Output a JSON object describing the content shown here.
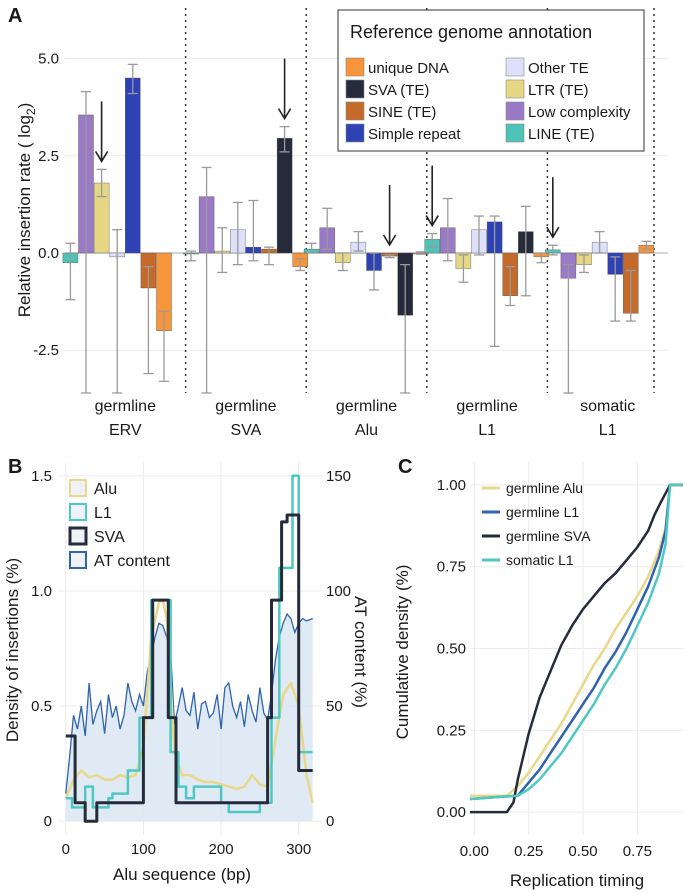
{
  "colors": {
    "grid": "#eaeaea",
    "errbar": "#9a9a9a",
    "arrow": "#222222",
    "at_fill": "#dbe6f2",
    "at_line": "#2e63ad"
  },
  "chart_data": [
    {
      "panel": "A",
      "type": "bar",
      "ylabel": "Relative insertion rate ( log",
      "ylabel_sub": "2",
      "ylabel_end": ")",
      "ylim": [
        -3.6,
        6.3
      ],
      "yticks": [
        -2.5,
        0.0,
        2.5,
        5.0
      ],
      "ytick_labels": [
        "-2.5",
        "0.0",
        "2.5",
        "5.0"
      ],
      "categories": [
        "unique DNA",
        "SVA (TE)",
        "SINE (TE)",
        "Simple repeat",
        "Other TE",
        "LTR (TE)",
        "Low complexity",
        "LINE (TE)"
      ],
      "category_colors": [
        "#f7953b",
        "#262b3b",
        "#c46a2a",
        "#2e42b4",
        "#dde0f8",
        "#e6d785",
        "#9a7ac6",
        "#4ec3b7"
      ],
      "bar_order": [
        "LINE (TE)",
        "Low complexity",
        "LTR (TE)",
        "Other TE",
        "Simple repeat",
        "SINE (TE)",
        "unique DNA"
      ],
      "groups": [
        {
          "label": [
            "germline",
            "ERV"
          ],
          "series": [
            "LINE (TE)",
            "Low complexity",
            "LTR (TE)",
            "Other TE",
            "Simple repeat",
            "SINE (TE)",
            "unique DNA"
          ],
          "values": [
            -0.25,
            3.55,
            1.8,
            -0.1,
            4.5,
            -0.9,
            -2.0
          ],
          "lo": [
            -1.2,
            -3.6,
            1.45,
            -3.6,
            4.1,
            -3.1,
            -3.3
          ],
          "hi": [
            0.25,
            4.15,
            2.15,
            0.6,
            4.85,
            -0.35,
            -1.5
          ]
        },
        {
          "label": [
            "germline",
            "SVA"
          ],
          "series": [
            "LINE (TE)",
            "Low complexity",
            "LTR (TE)",
            "Other TE",
            "Simple repeat",
            "SINE (TE)",
            "SVA (TE)",
            "unique DNA"
          ],
          "values": [
            0.0,
            1.45,
            0.05,
            0.6,
            0.15,
            0.1,
            2.95,
            -0.35
          ],
          "lo": [
            -0.2,
            -3.6,
            -0.5,
            -0.3,
            -0.2,
            -0.3,
            2.6,
            -0.45
          ],
          "hi": [
            0.05,
            2.2,
            0.65,
            1.3,
            1.35,
            0.15,
            3.25,
            -0.15
          ]
        },
        {
          "label": [
            "germline",
            "Alu"
          ],
          "series": [
            "LINE (TE)",
            "Low complexity",
            "LTR (TE)",
            "Other TE",
            "Simple repeat",
            "SINE (TE)",
            "SVA (TE)",
            "unique DNA"
          ],
          "values": [
            0.1,
            0.65,
            -0.25,
            0.28,
            -0.45,
            -0.08,
            -1.6,
            0.0
          ],
          "lo": [
            0.0,
            0.1,
            -0.45,
            0.05,
            -0.95,
            -0.12,
            -3.6,
            -0.03
          ],
          "hi": [
            0.25,
            1.15,
            0.0,
            0.55,
            0.0,
            -0.05,
            -0.3,
            0.03
          ]
        },
        {
          "label": [
            "germline",
            "L1"
          ],
          "series": [
            "LINE (TE)",
            "Low complexity",
            "LTR (TE)",
            "Other TE",
            "Simple repeat",
            "SINE (TE)",
            "SVA (TE)",
            "unique DNA"
          ],
          "values": [
            0.35,
            0.65,
            -0.4,
            0.6,
            0.8,
            -1.1,
            0.55,
            -0.1
          ],
          "lo": [
            0.15,
            -0.2,
            -0.75,
            -0.05,
            -2.4,
            -1.35,
            -1.1,
            -0.25
          ],
          "hi": [
            0.5,
            1.4,
            -0.05,
            0.95,
            0.95,
            -0.35,
            1.2,
            0.0
          ]
        },
        {
          "label": [
            "somatic",
            "L1"
          ],
          "series": [
            "LINE (TE)",
            "Low complexity",
            "LTR (TE)",
            "Other TE",
            "Simple repeat",
            "SINE (TE)",
            "unique DNA"
          ],
          "values": [
            0.08,
            -0.65,
            -0.3,
            0.28,
            -0.55,
            -1.55,
            0.2
          ],
          "lo": [
            -0.05,
            -3.6,
            -0.5,
            0.0,
            -1.75,
            -1.75,
            0.1
          ],
          "hi": [
            0.2,
            -0.3,
            -0.05,
            0.55,
            -0.1,
            -0.45,
            0.3
          ]
        }
      ],
      "arrows": [
        {
          "group": 0,
          "series": "LTR (TE)"
        },
        {
          "group": 1,
          "series": "SVA (TE)"
        },
        {
          "group": 2,
          "series": "SINE (TE)"
        },
        {
          "group": 3,
          "series": "LINE (TE)"
        },
        {
          "group": 4,
          "series": "LINE (TE)"
        }
      ],
      "legend": {
        "title": "Reference genome annotation",
        "placement": "top-right",
        "columns": [
          [
            "unique DNA",
            "SVA (TE)",
            "SINE (TE)",
            "Simple repeat"
          ],
          [
            "Other TE",
            "LTR (TE)",
            "Low complexity",
            "LINE (TE)"
          ]
        ]
      }
    },
    {
      "panel": "B",
      "type": "line",
      "xlabel": "Alu sequence (bp)",
      "ylabel": "Density of insertions (%)",
      "ylabel_right": "AT content (%)",
      "xlim": [
        -10,
        330
      ],
      "ylim": [
        -0.06,
        1.56
      ],
      "ylim_right": [
        -6,
        156
      ],
      "xticks": [
        0,
        100,
        200,
        300
      ],
      "xtick_labels": [
        "0",
        "100",
        "200",
        "300"
      ],
      "yticks": [
        0,
        0.5,
        1.0,
        1.5
      ],
      "ytick_labels": [
        "0",
        "0.5",
        "1.0",
        "1.5"
      ],
      "yticks_right": [
        0,
        50,
        100,
        150
      ],
      "ytick_labels_right": [
        "0",
        "50",
        "100",
        "150"
      ],
      "series": [
        {
          "name": "Alu",
          "color": "#e7d88a",
          "width": 2.5,
          "x": [
            0,
            10,
            20,
            30,
            40,
            50,
            60,
            70,
            80,
            90,
            100,
            110,
            120,
            125,
            130,
            135,
            140,
            150,
            160,
            170,
            180,
            190,
            200,
            210,
            220,
            230,
            240,
            250,
            260,
            270,
            280,
            290,
            295,
            300,
            310,
            318
          ],
          "y": [
            0.1,
            0.18,
            0.22,
            0.19,
            0.2,
            0.18,
            0.18,
            0.2,
            0.19,
            0.2,
            0.32,
            0.8,
            0.95,
            0.96,
            0.88,
            0.6,
            0.3,
            0.2,
            0.2,
            0.18,
            0.17,
            0.17,
            0.16,
            0.15,
            0.14,
            0.15,
            0.2,
            0.16,
            0.15,
            0.35,
            0.55,
            0.6,
            0.55,
            0.5,
            0.2,
            0.08
          ]
        },
        {
          "name": "L1",
          "color": "#4fc7c2",
          "width": 2.5,
          "x": [
            0,
            8,
            8,
            25,
            25,
            35,
            35,
            55,
            55,
            60,
            60,
            80,
            80,
            95,
            95,
            110,
            110,
            135,
            135,
            145,
            145,
            155,
            155,
            165,
            165,
            200,
            200,
            210,
            210,
            250,
            250,
            265,
            265,
            275,
            275,
            292,
            292,
            300,
            300,
            318
          ],
          "y": [
            0.1,
            0.1,
            0.06,
            0.06,
            0.15,
            0.15,
            0.06,
            0.06,
            0.1,
            0.1,
            0.12,
            0.12,
            0.22,
            0.22,
            0.45,
            0.45,
            0.96,
            0.96,
            0.3,
            0.3,
            0.15,
            0.15,
            0.1,
            0.1,
            0.15,
            0.15,
            0.08,
            0.08,
            0.04,
            0.04,
            0.08,
            0.08,
            0.45,
            0.45,
            1.1,
            1.1,
            1.5,
            1.5,
            0.3,
            0.3
          ]
        },
        {
          "name": "SVA",
          "color": "#262b3b",
          "width": 3,
          "x": [
            0,
            12,
            12,
            25,
            25,
            40,
            40,
            65,
            65,
            100,
            100,
            112,
            112,
            132,
            132,
            142,
            142,
            260,
            260,
            265,
            265,
            278,
            278,
            285,
            285,
            300,
            300,
            318
          ],
          "y": [
            0.37,
            0.37,
            0.08,
            0.08,
            0.0,
            0.0,
            0.08,
            0.08,
            0.08,
            0.08,
            0.45,
            0.45,
            0.96,
            0.96,
            0.45,
            0.45,
            0.08,
            0.08,
            0.45,
            0.45,
            0.96,
            0.96,
            1.3,
            1.3,
            1.33,
            1.33,
            0.22,
            0.22
          ]
        }
      ],
      "at_content": {
        "name": "AT content",
        "color": "#2e63ad",
        "x": [
          0,
          5,
          10,
          15,
          20,
          25,
          30,
          35,
          40,
          45,
          50,
          55,
          60,
          65,
          70,
          75,
          80,
          85,
          90,
          95,
          100,
          105,
          110,
          115,
          120,
          125,
          130,
          135,
          140,
          145,
          150,
          155,
          160,
          165,
          170,
          175,
          180,
          185,
          190,
          195,
          200,
          205,
          210,
          215,
          220,
          225,
          230,
          235,
          240,
          245,
          250,
          255,
          260,
          265,
          270,
          275,
          280,
          285,
          290,
          295,
          300,
          305,
          310,
          318
        ],
        "y": [
          12,
          28,
          46,
          40,
          50,
          37,
          60,
          42,
          48,
          52,
          38,
          55,
          45,
          50,
          40,
          46,
          60,
          52,
          48,
          55,
          50,
          65,
          72,
          80,
          86,
          85,
          80,
          74,
          42,
          50,
          58,
          48,
          46,
          56,
          40,
          51,
          52,
          45,
          47,
          55,
          40,
          58,
          60,
          50,
          45,
          52,
          41,
          55,
          48,
          43,
          58,
          47,
          44,
          55,
          70,
          80,
          86,
          90,
          88,
          82,
          86,
          88,
          87,
          88
        ]
      },
      "legend": {
        "placement": "top-left",
        "items": [
          "Alu",
          "L1",
          "SVA",
          "AT content"
        ]
      }
    },
    {
      "panel": "C",
      "type": "line",
      "xlabel": "Replication timing",
      "ylabel": "Cumulative density (%)",
      "xlim": [
        -0.02,
        0.96
      ],
      "ylim": [
        -0.07,
        1.07
      ],
      "xticks": [
        0.0,
        0.25,
        0.5,
        0.75
      ],
      "xtick_labels": [
        "0.00",
        "0.25",
        "0.50",
        "0.75"
      ],
      "yticks": [
        0.0,
        0.25,
        0.5,
        0.75,
        1.0
      ],
      "ytick_labels": [
        "0.00",
        "0.25",
        "0.50",
        "0.75",
        "1.00"
      ],
      "series": [
        {
          "name": "germline Alu",
          "color": "#e7d88a",
          "x": [
            -0.02,
            0.15,
            0.2,
            0.25,
            0.3,
            0.35,
            0.4,
            0.45,
            0.5,
            0.55,
            0.6,
            0.65,
            0.7,
            0.75,
            0.8,
            0.85,
            0.88,
            0.9,
            0.96
          ],
          "y": [
            0.05,
            0.05,
            0.08,
            0.12,
            0.17,
            0.22,
            0.27,
            0.33,
            0.39,
            0.45,
            0.5,
            0.56,
            0.61,
            0.66,
            0.72,
            0.8,
            0.87,
            1.0,
            1.0
          ]
        },
        {
          "name": "germline L1",
          "color": "#2e63ad",
          "x": [
            -0.02,
            0.2,
            0.25,
            0.3,
            0.35,
            0.4,
            0.45,
            0.5,
            0.55,
            0.6,
            0.65,
            0.7,
            0.75,
            0.8,
            0.85,
            0.88,
            0.9,
            0.96
          ],
          "y": [
            0.04,
            0.05,
            0.09,
            0.13,
            0.18,
            0.23,
            0.28,
            0.33,
            0.38,
            0.44,
            0.49,
            0.55,
            0.62,
            0.69,
            0.78,
            0.86,
            1.0,
            1.0
          ]
        },
        {
          "name": "germline SVA",
          "color": "#262b3b",
          "x": [
            -0.02,
            0.15,
            0.18,
            0.2,
            0.25,
            0.3,
            0.35,
            0.4,
            0.45,
            0.5,
            0.55,
            0.6,
            0.65,
            0.7,
            0.75,
            0.8,
            0.83,
            0.86,
            0.9,
            0.96
          ],
          "y": [
            0.0,
            0.0,
            0.03,
            0.1,
            0.24,
            0.35,
            0.43,
            0.51,
            0.57,
            0.62,
            0.66,
            0.7,
            0.73,
            0.77,
            0.81,
            0.86,
            0.91,
            0.95,
            1.0,
            1.0
          ]
        },
        {
          "name": "somatic L1",
          "color": "#4fc7c2",
          "x": [
            -0.02,
            0.2,
            0.25,
            0.3,
            0.35,
            0.4,
            0.45,
            0.5,
            0.55,
            0.6,
            0.65,
            0.7,
            0.75,
            0.8,
            0.85,
            0.88,
            0.9,
            0.96
          ],
          "y": [
            0.04,
            0.05,
            0.07,
            0.1,
            0.14,
            0.18,
            0.23,
            0.28,
            0.33,
            0.39,
            0.44,
            0.5,
            0.57,
            0.64,
            0.73,
            0.82,
            1.0,
            1.0
          ]
        }
      ],
      "legend": {
        "placement": "top-left",
        "items": [
          "germline Alu",
          "germline L1",
          "germline SVA",
          "somatic L1"
        ]
      }
    }
  ]
}
